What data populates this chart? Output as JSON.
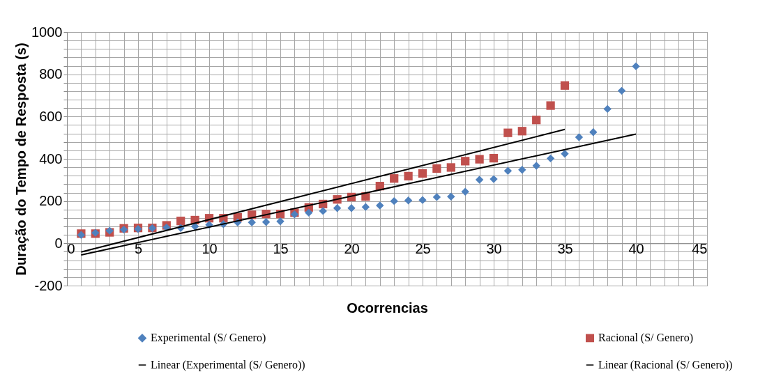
{
  "chart_data": {
    "type": "scatter",
    "xlabel": "Ocorrencias",
    "ylabel": "Duração do Tempo de Resposta (s)",
    "xlim": [
      0,
      45
    ],
    "ylim": [
      -200,
      1000
    ],
    "xticks": [
      0,
      {
        "value": 1,
        "label": null
      },
      {
        "value": 2,
        "label": null
      },
      {
        "value": 3,
        "label": null
      },
      {
        "value": 4,
        "label": null
      },
      5,
      {
        "value": 6,
        "label": null
      },
      {
        "value": 7,
        "label": null
      },
      {
        "value": 8,
        "label": null
      },
      {
        "value": 9,
        "label": null
      },
      10,
      {
        "value": 11,
        "label": null
      },
      {
        "value": 12,
        "label": null
      },
      {
        "value": 13,
        "label": null
      },
      {
        "value": 14,
        "label": null
      },
      15,
      {
        "value": 16,
        "label": null
      },
      {
        "value": 17,
        "label": null
      },
      {
        "value": 18,
        "label": null
      },
      {
        "value": 19,
        "label": null
      },
      20,
      {
        "value": 21,
        "label": null
      },
      {
        "value": 22,
        "label": null
      },
      {
        "value": 23,
        "label": null
      },
      {
        "value": 24,
        "label": null
      },
      25,
      {
        "value": 26,
        "label": null
      },
      {
        "value": 27,
        "label": null
      },
      {
        "value": 28,
        "label": null
      },
      {
        "value": 29,
        "label": null
      },
      30,
      {
        "value": 31,
        "label": null
      },
      {
        "value": 32,
        "label": null
      },
      {
        "value": 33,
        "label": null
      },
      {
        "value": 34,
        "label": null
      },
      35,
      {
        "value": 36,
        "label": null
      },
      {
        "value": 37,
        "label": null
      },
      {
        "value": 38,
        "label": null
      },
      {
        "value": 39,
        "label": null
      },
      40,
      {
        "value": 41,
        "label": null
      },
      {
        "value": 42,
        "label": null
      },
      {
        "value": 43,
        "label": null
      },
      {
        "value": 44,
        "label": null
      },
      45
    ],
    "yticks": [
      -200,
      {
        "value": -160,
        "label": null
      },
      {
        "value": -120,
        "label": null
      },
      {
        "value": -80,
        "label": null
      },
      {
        "value": -40,
        "label": null
      },
      0,
      {
        "value": 40,
        "label": null
      },
      {
        "value": 80,
        "label": null
      },
      {
        "value": 120,
        "label": null
      },
      {
        "value": 160,
        "label": null
      },
      200,
      {
        "value": 240,
        "label": null
      },
      {
        "value": 280,
        "label": null
      },
      {
        "value": 320,
        "label": null
      },
      {
        "value": 360,
        "label": null
      },
      400,
      {
        "value": 440,
        "label": null
      },
      {
        "value": 480,
        "label": null
      },
      {
        "value": 520,
        "label": null
      },
      {
        "value": 560,
        "label": null
      },
      600,
      {
        "value": 640,
        "label": null
      },
      {
        "value": 680,
        "label": null
      },
      {
        "value": 720,
        "label": null
      },
      {
        "value": 760,
        "label": null
      },
      800,
      {
        "value": 840,
        "label": null
      },
      {
        "value": 880,
        "label": null
      },
      {
        "value": 920,
        "label": null
      },
      {
        "value": 960,
        "label": null
      },
      1000
    ],
    "grid": true,
    "legend": "bottom",
    "series": [
      {
        "name": "Experimental (S/ Genero)",
        "type": "scatter",
        "marker": "diamond",
        "color": "#4f81bd",
        "x": [
          1,
          2,
          3,
          4,
          5,
          6,
          7,
          8,
          9,
          10,
          11,
          12,
          13,
          14,
          15,
          16,
          17,
          18,
          19,
          20,
          21,
          22,
          23,
          24,
          25,
          26,
          27,
          28,
          29,
          30,
          31,
          32,
          33,
          34,
          35,
          36,
          37,
          38,
          39,
          40
        ],
        "values": [
          40,
          50,
          60,
          65,
          68,
          72,
          75,
          73,
          80,
          88,
          91,
          99,
          99,
          101,
          104,
          137,
          145,
          153,
          167,
          167,
          172,
          179,
          200,
          203,
          205,
          219,
          221,
          244,
          301,
          304,
          343,
          348,
          367,
          402,
          424,
          502,
          526,
          636,
          722,
          838
        ]
      },
      {
        "name": "Racional (S/ Genero)",
        "type": "scatter",
        "marker": "square",
        "color": "#c0504d",
        "x": [
          1,
          2,
          3,
          4,
          5,
          6,
          7,
          8,
          9,
          10,
          11,
          12,
          13,
          14,
          15,
          16,
          17,
          18,
          19,
          20,
          21,
          22,
          23,
          24,
          25,
          26,
          27,
          28,
          29,
          30,
          31,
          32,
          33,
          34,
          35
        ],
        "values": [
          46,
          46,
          52,
          71,
          73,
          73,
          85,
          106,
          110,
          119,
          119,
          123,
          135,
          139,
          139,
          145,
          170,
          186,
          208,
          219,
          222,
          271,
          307,
          318,
          331,
          354,
          359,
          389,
          398,
          403,
          523,
          531,
          584,
          652,
          747
        ]
      },
      {
        "name": "Linear (Experimental (S/ Genero))",
        "type": "line",
        "marker": "none",
        "line_style": "solid",
        "color": "#000000",
        "x": [
          1,
          40
        ],
        "values": [
          -55,
          517
        ]
      },
      {
        "name": "Linear (Racional (S/ Genero))",
        "type": "line",
        "marker": "none",
        "line_style": "solid",
        "color": "#000000",
        "x": [
          1,
          35
        ],
        "values": [
          -41,
          539
        ]
      }
    ]
  }
}
